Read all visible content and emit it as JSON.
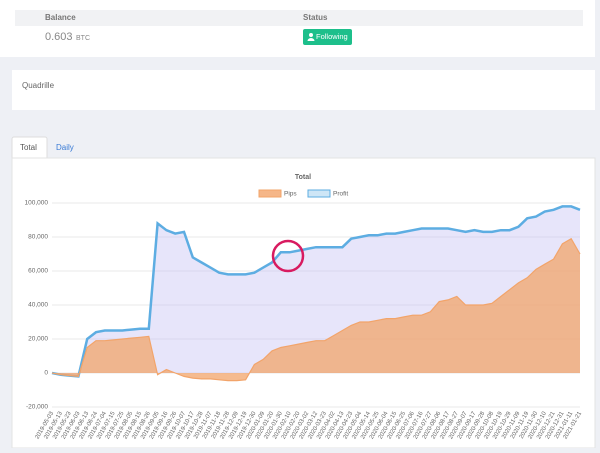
{
  "account": {
    "header": {
      "balance": "Balance",
      "status": "Status"
    },
    "balance": "0.603",
    "unit": "BTC",
    "status": "Following"
  },
  "strategy": {
    "name": "Quadrille"
  },
  "tabs": [
    "Total",
    "Daily"
  ],
  "chart_data": {
    "type": "line",
    "title": "Total",
    "categories": [
      "2019-05-03",
      "2019-05-13",
      "2019-05-23",
      "2019-06-03",
      "2019-06-13",
      "2019-06-24",
      "2019-07-04",
      "2019-07-15",
      "2019-07-25",
      "2019-08-05",
      "2019-08-15",
      "2019-08-26",
      "2019-09-05",
      "2019-09-16",
      "2019-09-26",
      "2019-10-07",
      "2019-10-17",
      "2019-10-28",
      "2019-11-07",
      "2019-11-18",
      "2019-11-28",
      "2019-12-09",
      "2019-12-19",
      "2019-12-30",
      "2020-01-09",
      "2020-01-20",
      "2020-01-30",
      "2020-02-10",
      "2020-02-20",
      "2020-03-02",
      "2020-03-12",
      "2020-03-23",
      "2020-04-02",
      "2020-04-13",
      "2020-04-23",
      "2020-05-04",
      "2020-05-14",
      "2020-05-25",
      "2020-06-04",
      "2020-06-15",
      "2020-06-25",
      "2020-07-06",
      "2020-07-16",
      "2020-07-27",
      "2020-08-06",
      "2020-08-17",
      "2020-08-27",
      "2020-09-07",
      "2020-09-17",
      "2020-09-28",
      "2020-10-08",
      "2020-10-19",
      "2020-10-29",
      "2020-11-09",
      "2020-11-19",
      "2020-11-30",
      "2020-12-10",
      "2020-12-21",
      "2020-12-31",
      "2021-01-11",
      "2021-01-21"
    ],
    "series": [
      {
        "name": "Pips",
        "color": "#f2a46a",
        "values": [
          0,
          -1000,
          -1500,
          -2000,
          15000,
          19000,
          19000,
          19500,
          20000,
          20500,
          21000,
          21500,
          -1000,
          2000,
          0,
          -2000,
          -3000,
          -3500,
          -3500,
          -4000,
          -4500,
          -4500,
          -4000,
          5000,
          8000,
          13000,
          15000,
          16000,
          17000,
          18000,
          19000,
          19000,
          22000,
          25000,
          28000,
          30000,
          30000,
          31000,
          32000,
          32000,
          33000,
          34000,
          34000,
          36000,
          42000,
          43000,
          45000,
          40000,
          40000,
          40000,
          41000,
          45000,
          49000,
          53000,
          56000,
          61000,
          64000,
          67000,
          76000,
          79000,
          70000
        ]
      },
      {
        "name": "Profit",
        "color": "#5dade2",
        "values": [
          0,
          -1000,
          -1500,
          -2000,
          20000,
          24000,
          25000,
          25000,
          25000,
          25500,
          26000,
          26000,
          88000,
          84000,
          82000,
          83000,
          68000,
          65000,
          62000,
          59000,
          58000,
          58000,
          58000,
          59000,
          62000,
          65000,
          71000,
          71000,
          72000,
          73000,
          74000,
          74000,
          74000,
          74000,
          79000,
          80000,
          81000,
          81000,
          82000,
          82000,
          83000,
          84000,
          85000,
          85000,
          85000,
          85000,
          84000,
          83000,
          84000,
          83000,
          83000,
          84000,
          84000,
          86000,
          91000,
          92000,
          95000,
          96000,
          98000,
          98000,
          96000
        ]
      }
    ],
    "ylim": [
      -20000,
      100000
    ],
    "yticks": [
      {
        "value": -20000,
        "label": "-20,000"
      },
      0,
      {
        "value": 20000,
        "label": "20,000"
      },
      {
        "value": 40000,
        "label": "40,000"
      },
      {
        "value": 60000,
        "label": "60,000"
      },
      {
        "value": 80000,
        "label": "80,000"
      },
      {
        "value": 100000,
        "label": "100,000"
      }
    ],
    "grid": true,
    "legend": "top"
  }
}
